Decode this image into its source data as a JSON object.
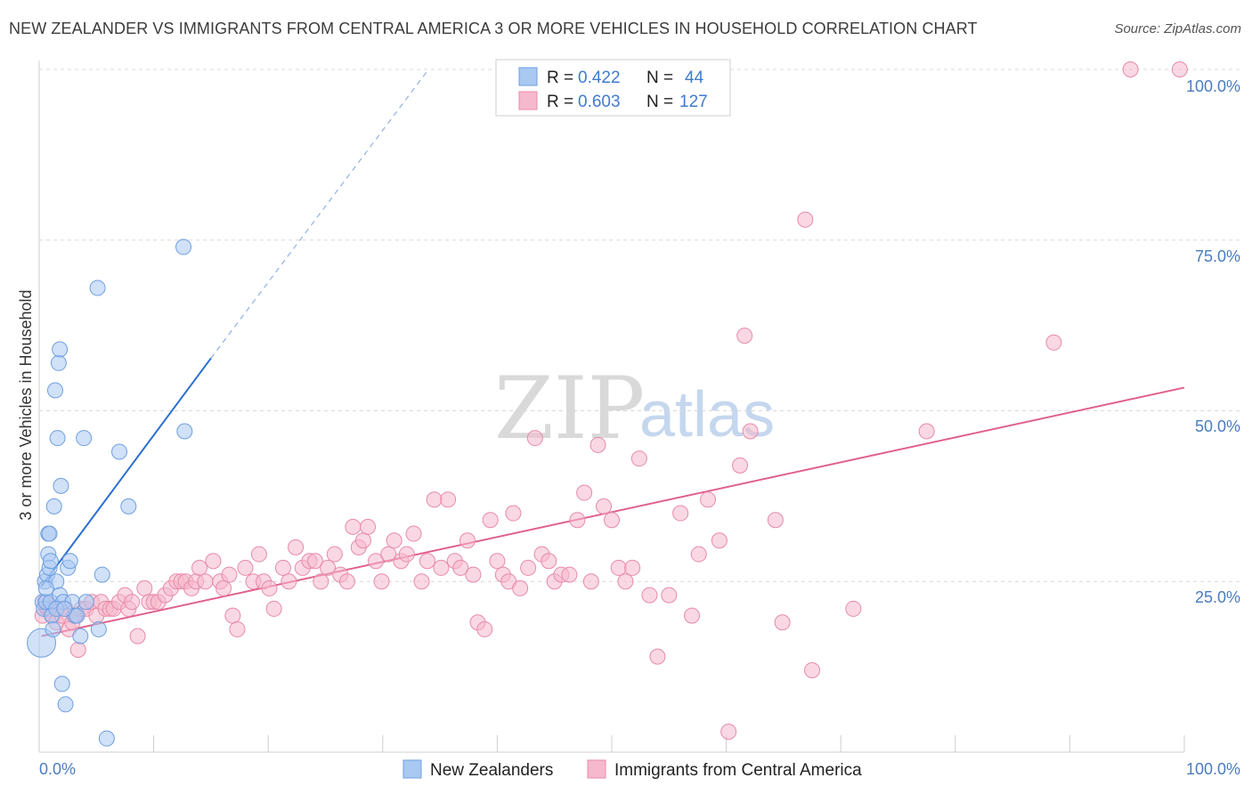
{
  "title": "NEW ZEALANDER VS IMMIGRANTS FROM CENTRAL AMERICA 3 OR MORE VEHICLES IN HOUSEHOLD CORRELATION CHART",
  "source": "Source: ZipAtlas.com",
  "watermark": {
    "zip": "ZIP",
    "atlas": "atlas"
  },
  "colors": {
    "blue_fill": "#a9c8f2",
    "blue_stroke": "#6f9fe0",
    "blue_line": "#2b6fcf",
    "pink_fill": "#f5b8cc",
    "pink_stroke": "#e88aa8",
    "pink_line": "#e0608c",
    "grid": "#d9d9d9",
    "axis_label": "#4a7cc0"
  },
  "legend": {
    "rows": [
      {
        "r_label": "R = ",
        "r_value": "0.422",
        "n_label": "N = ",
        "n_value": "44"
      },
      {
        "r_label": "R = ",
        "r_value": "0.603",
        "n_label": "N = ",
        "n_value": "127"
      }
    ]
  },
  "chart_data": {
    "type": "scatter",
    "title": "NEW ZEALANDER VS IMMIGRANTS FROM CENTRAL AMERICA 3 OR MORE VEHICLES IN HOUSEHOLD CORRELATION CHART",
    "xlabel": "",
    "ylabel": "3 or more Vehicles in Household",
    "xlim": [
      0,
      100
    ],
    "ylim": [
      0,
      102
    ],
    "x_tick_labels": [
      "0.0%",
      "100.0%"
    ],
    "y_ticks": [
      25,
      50,
      75,
      100
    ],
    "y_tick_labels": [
      "25.0%",
      "50.0%",
      "75.0%",
      "100.0%"
    ],
    "grid": true,
    "legend_position": "top-center",
    "series": [
      {
        "name": "New Zealanders",
        "color": "#a9c8f2",
        "trend": {
          "x": [
            0.2,
            15.0
          ],
          "y": [
            24.3,
            57.7
          ],
          "dashed_extension_to": [
            34.0,
            100.0
          ]
        },
        "points": [
          [
            0.2,
            16
          ],
          [
            0.3,
            22
          ],
          [
            0.4,
            21
          ],
          [
            0.5,
            25
          ],
          [
            0.6,
            22
          ],
          [
            0.7,
            26
          ],
          [
            0.8,
            32
          ],
          [
            0.8,
            29
          ],
          [
            0.9,
            27
          ],
          [
            1.0,
            28
          ],
          [
            1.0,
            22
          ],
          [
            1.1,
            20
          ],
          [
            1.2,
            18
          ],
          [
            1.3,
            36
          ],
          [
            1.4,
            53
          ],
          [
            1.5,
            25
          ],
          [
            1.6,
            46
          ],
          [
            1.7,
            57
          ],
          [
            1.8,
            59
          ],
          [
            1.8,
            23
          ],
          [
            1.9,
            39
          ],
          [
            2.0,
            10
          ],
          [
            2.1,
            22
          ],
          [
            2.3,
            7
          ],
          [
            2.5,
            27
          ],
          [
            2.7,
            28
          ],
          [
            2.9,
            22
          ],
          [
            3.1,
            20
          ],
          [
            3.3,
            20
          ],
          [
            3.6,
            17
          ],
          [
            3.9,
            46
          ],
          [
            4.1,
            22
          ],
          [
            5.1,
            68
          ],
          [
            5.2,
            18
          ],
          [
            5.5,
            26
          ],
          [
            5.9,
            2
          ],
          [
            7.0,
            44
          ],
          [
            7.8,
            36
          ],
          [
            12.6,
            74
          ],
          [
            12.7,
            47
          ],
          [
            0.9,
            32
          ],
          [
            0.6,
            24
          ],
          [
            1.5,
            21
          ],
          [
            2.2,
            21
          ]
        ]
      },
      {
        "name": "Immigrants from Central America",
        "color": "#f5b8cc",
        "trend": {
          "x": [
            0.2,
            100.0
          ],
          "y": [
            17.0,
            53.4
          ]
        },
        "points": [
          [
            0.3,
            20
          ],
          [
            0.5,
            22
          ],
          [
            0.7,
            21
          ],
          [
            0.8,
            21
          ],
          [
            1.0,
            21
          ],
          [
            1.2,
            20
          ],
          [
            1.5,
            19
          ],
          [
            1.8,
            21
          ],
          [
            2.0,
            20
          ],
          [
            2.3,
            21
          ],
          [
            2.6,
            18
          ],
          [
            2.9,
            19
          ],
          [
            3.2,
            20
          ],
          [
            3.4,
            15
          ],
          [
            3.7,
            21
          ],
          [
            4.1,
            21
          ],
          [
            4.6,
            22
          ],
          [
            5.0,
            20
          ],
          [
            5.4,
            22
          ],
          [
            5.8,
            21
          ],
          [
            6.2,
            21
          ],
          [
            6.5,
            21
          ],
          [
            7.0,
            22
          ],
          [
            7.5,
            23
          ],
          [
            7.8,
            21
          ],
          [
            8.1,
            22
          ],
          [
            8.6,
            17
          ],
          [
            9.2,
            24
          ],
          [
            9.6,
            22
          ],
          [
            10.0,
            22
          ],
          [
            10.4,
            22
          ],
          [
            11.0,
            23
          ],
          [
            11.5,
            24
          ],
          [
            12.0,
            25
          ],
          [
            12.4,
            25
          ],
          [
            12.8,
            25
          ],
          [
            13.3,
            24
          ],
          [
            13.7,
            25
          ],
          [
            14.0,
            27
          ],
          [
            14.5,
            25
          ],
          [
            15.2,
            28
          ],
          [
            15.8,
            25
          ],
          [
            16.1,
            24
          ],
          [
            16.6,
            26
          ],
          [
            16.9,
            20
          ],
          [
            17.3,
            18
          ],
          [
            18.0,
            27
          ],
          [
            18.7,
            25
          ],
          [
            19.2,
            29
          ],
          [
            19.6,
            25
          ],
          [
            20.1,
            24
          ],
          [
            20.5,
            21
          ],
          [
            21.3,
            27
          ],
          [
            21.8,
            25
          ],
          [
            22.4,
            30
          ],
          [
            23.0,
            27
          ],
          [
            23.6,
            28
          ],
          [
            24.1,
            28
          ],
          [
            24.6,
            25
          ],
          [
            25.2,
            27
          ],
          [
            25.8,
            29
          ],
          [
            26.3,
            26
          ],
          [
            26.9,
            25
          ],
          [
            27.4,
            33
          ],
          [
            27.9,
            30
          ],
          [
            28.3,
            31
          ],
          [
            28.7,
            33
          ],
          [
            29.4,
            28
          ],
          [
            29.9,
            25
          ],
          [
            30.5,
            29
          ],
          [
            31.0,
            31
          ],
          [
            31.6,
            28
          ],
          [
            32.1,
            29
          ],
          [
            32.7,
            32
          ],
          [
            33.4,
            25
          ],
          [
            33.9,
            28
          ],
          [
            34.5,
            37
          ],
          [
            35.1,
            27
          ],
          [
            35.7,
            37
          ],
          [
            36.3,
            28
          ],
          [
            36.8,
            27
          ],
          [
            37.4,
            31
          ],
          [
            37.9,
            26
          ],
          [
            38.3,
            19
          ],
          [
            38.9,
            18
          ],
          [
            39.4,
            34
          ],
          [
            40.0,
            28
          ],
          [
            40.5,
            26
          ],
          [
            41.0,
            25
          ],
          [
            41.4,
            35
          ],
          [
            42.0,
            24
          ],
          [
            42.7,
            27
          ],
          [
            43.3,
            46
          ],
          [
            43.9,
            29
          ],
          [
            44.5,
            28
          ],
          [
            45.0,
            25
          ],
          [
            45.6,
            26
          ],
          [
            46.3,
            26
          ],
          [
            47.0,
            34
          ],
          [
            47.6,
            38
          ],
          [
            48.2,
            25
          ],
          [
            48.8,
            45
          ],
          [
            49.3,
            36
          ],
          [
            50.0,
            34
          ],
          [
            50.6,
            27
          ],
          [
            51.2,
            25
          ],
          [
            51.8,
            27
          ],
          [
            52.4,
            43
          ],
          [
            53.3,
            23
          ],
          [
            54.0,
            14
          ],
          [
            55.0,
            23
          ],
          [
            56.0,
            35
          ],
          [
            57.0,
            20
          ],
          [
            57.6,
            29
          ],
          [
            58.4,
            37
          ],
          [
            59.4,
            31
          ],
          [
            60.2,
            3
          ],
          [
            61.2,
            42
          ],
          [
            61.6,
            61
          ],
          [
            62.1,
            47
          ],
          [
            64.3,
            34
          ],
          [
            64.9,
            19
          ],
          [
            66.9,
            78
          ],
          [
            67.5,
            12
          ],
          [
            71.1,
            21
          ],
          [
            77.5,
            47
          ],
          [
            88.6,
            60
          ],
          [
            95.3,
            100
          ],
          [
            99.6,
            100
          ]
        ]
      }
    ]
  },
  "axis": {
    "ylabel": "3 or more Vehicles in Household",
    "x_left": "0.0%",
    "x_right": "100.0%",
    "y_labels": [
      "25.0%",
      "50.0%",
      "75.0%",
      "100.0%"
    ]
  },
  "bottom_legend": [
    "New Zealanders",
    "Immigrants from Central America"
  ]
}
